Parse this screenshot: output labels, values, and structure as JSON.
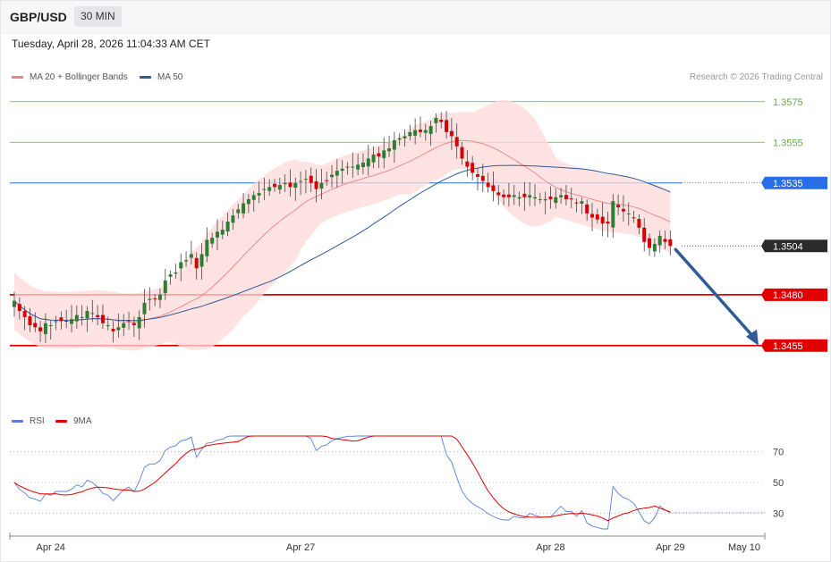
{
  "header": {
    "symbol": "GBP/USD",
    "timeframe": "30 MIN",
    "datetime": "Tuesday, April 28, 2026 11:04:33 AM CET",
    "credit": "Research © 2026 Trading Central"
  },
  "legend": {
    "bollinger": {
      "label": "MA 20 + Bollinger Bands",
      "color": "#f08080"
    },
    "ma50": {
      "label": "MA 50",
      "color": "#2e5c9a"
    },
    "rsi": {
      "label": "RSI",
      "color": "#5b7fd6"
    },
    "rsi_ma": {
      "label": "9MA",
      "color": "#e00000"
    }
  },
  "chart_data": [
    {
      "type": "candlestick",
      "ylim": [
        1.3425,
        1.3585
      ],
      "bar_period": "30 MIN",
      "x_ticks": [
        {
          "label": "Apr 24",
          "bar": 7
        },
        {
          "label": "Apr 27",
          "bar": 55
        },
        {
          "label": "Apr 28",
          "bar": 103
        },
        {
          "label": "Apr 29",
          "bar": 126
        },
        {
          "label": "May 10",
          "bar": 137
        }
      ],
      "levels": [
        {
          "value": 1.3575,
          "label": "1.3575",
          "kind": "target",
          "color": "#6aa84f"
        },
        {
          "value": 1.3555,
          "label": "1.3555",
          "kind": "target",
          "color": "#6aa84f"
        },
        {
          "value": 1.3535,
          "label": "1.3535",
          "kind": "pivot",
          "color": "#2a6de8"
        },
        {
          "value": 1.3504,
          "label": "1.3504",
          "kind": "last_price",
          "color": "#333333"
        },
        {
          "value": 1.348,
          "label": "1.3480",
          "kind": "support",
          "color": "#e00000"
        },
        {
          "value": 1.3455,
          "label": "1.3455",
          "kind": "support",
          "color": "#e00000"
        }
      ],
      "close": [
        1.3477,
        1.3472,
        1.3469,
        1.3465,
        1.3464,
        1.3462,
        1.3466,
        1.3465,
        1.3467,
        1.3467,
        1.3467,
        1.3468,
        1.347,
        1.3469,
        1.3472,
        1.3471,
        1.3469,
        1.3466,
        1.3465,
        1.3462,
        1.3464,
        1.3466,
        1.3467,
        1.3465,
        1.3469,
        1.3476,
        1.3478,
        1.3478,
        1.348,
        1.3487,
        1.349,
        1.3491,
        1.3496,
        1.3497,
        1.35,
        1.3493,
        1.35,
        1.3507,
        1.3508,
        1.3511,
        1.3512,
        1.3516,
        1.3519,
        1.3522,
        1.3525,
        1.3527,
        1.3529,
        1.353,
        1.3532,
        1.3533,
        1.3533,
        1.3534,
        1.3535,
        1.3533,
        1.3535,
        1.3536,
        1.3537,
        1.3535,
        1.3532,
        1.3535,
        1.3536,
        1.3539,
        1.3541,
        1.3542,
        1.3543,
        1.3543,
        1.3544,
        1.3545,
        1.3547,
        1.3549,
        1.3548,
        1.3551,
        1.3552,
        1.3556,
        1.3557,
        1.3558,
        1.356,
        1.3561,
        1.356,
        1.3561,
        1.3563,
        1.3567,
        1.3565,
        1.356,
        1.3558,
        1.3553,
        1.3547,
        1.3543,
        1.354,
        1.3538,
        1.3536,
        1.3533,
        1.3531,
        1.3529,
        1.3528,
        1.3528,
        1.3529,
        1.3528,
        1.3528,
        1.3529,
        1.3528,
        1.3527,
        1.3527,
        1.3527,
        1.3528,
        1.3529,
        1.3527,
        1.3527,
        1.3525,
        1.3526,
        1.352,
        1.3518,
        1.3517,
        1.3515,
        1.3515,
        1.3526,
        1.3523,
        1.3521,
        1.352,
        1.3518,
        1.3513,
        1.3506,
        1.3503,
        1.3505,
        1.3509,
        1.3506,
        1.3504
      ],
      "rsi": {
        "ylim": [
          20,
          80
        ],
        "ticks": [
          70,
          50,
          30
        ]
      }
    }
  ]
}
